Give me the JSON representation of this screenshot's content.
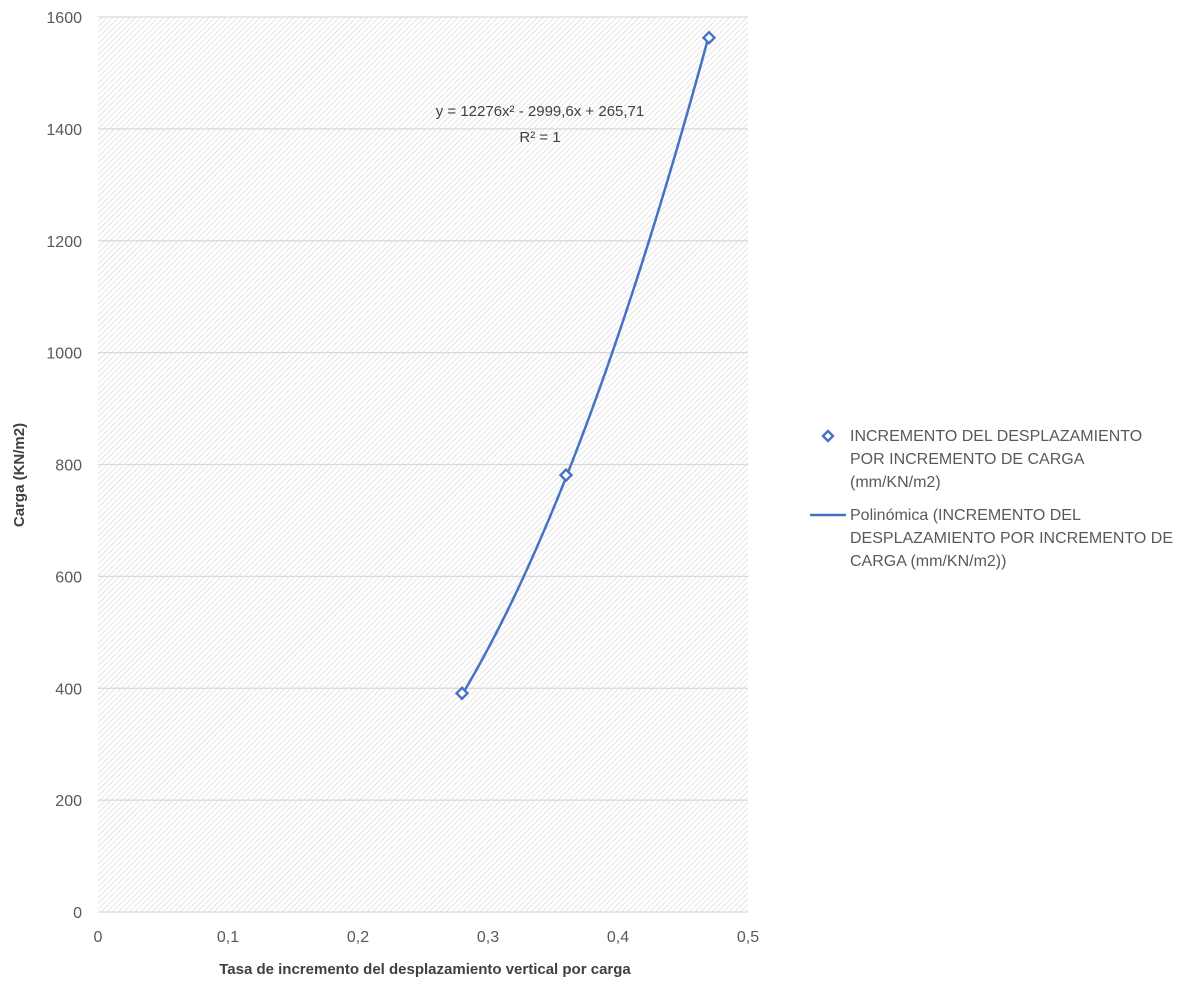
{
  "chart_data": {
    "type": "scatter",
    "title": "",
    "xlabel": "Tasa de incremento del desplazamiento vertical por carga",
    "ylabel": "Carga (KN/m2)",
    "xlim": [
      0,
      0.5
    ],
    "ylim": [
      0,
      1600
    ],
    "x_ticks": [
      0,
      0.1,
      0.2,
      0.3,
      0.4,
      0.5
    ],
    "x_tick_labels": [
      "0",
      "0,1",
      "0,2",
      "0,3",
      "0,4",
      "0,5"
    ],
    "y_ticks": [
      0,
      200,
      400,
      600,
      800,
      1000,
      1200,
      1400,
      1600
    ],
    "y_tick_labels": [
      "0",
      "200",
      "400",
      "600",
      "800",
      "1000",
      "1200",
      "1400",
      "1600"
    ],
    "grid": "horizontal",
    "plot_background": "hatched",
    "legend_position": "right",
    "series": [
      {
        "name": "INCREMENTO DEL DESPLAZAMIENTO POR INCREMENTO DE CARGA (mm/KN/m2)",
        "marker": "diamond-outline",
        "color": "#4472C4",
        "x": [
          0.28,
          0.36,
          0.47
        ],
        "y": [
          391,
          781,
          1563
        ]
      }
    ],
    "trendline": {
      "name": "Polinómica (INCREMENTO DEL DESPLAZAMIENTO POR INCREMENTO DE CARGA (mm/KN/m2))",
      "type": "polynomial",
      "coefficients": [
        12276,
        -2999.6,
        265.71
      ],
      "color": "#4472C4",
      "x_range": [
        0.28,
        0.47
      ],
      "equation_line1": "y = 12276x² - 2999,6x + 265,71",
      "equation_line2": "R² = 1"
    }
  }
}
